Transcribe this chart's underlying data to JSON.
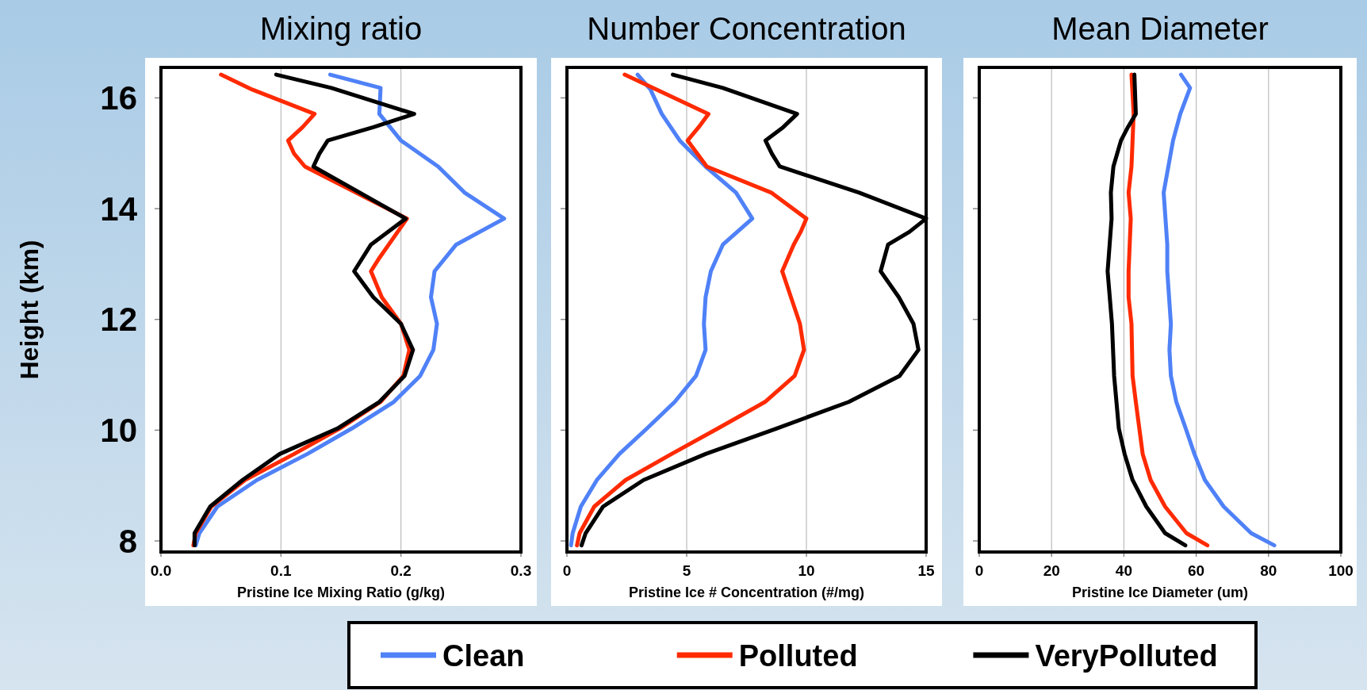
{
  "chart_data": [
    {
      "type": "line",
      "title": "Mixing ratio",
      "xlabel": "Pristine Ice Mixing Ratio (g/kg)",
      "ylabel": "Height (km)",
      "xlim": [
        0,
        0.3
      ],
      "xticks": [
        {
          "value": 0,
          "label": "0.0"
        },
        0.1,
        0.2,
        0.3
      ],
      "ylim": [
        7.8,
        16.55
      ],
      "yticks": [
        8,
        10,
        12,
        14,
        16
      ],
      "grid": "x",
      "legend": "bottom",
      "series": [
        {
          "name": "Clean",
          "color": "#4f81f7",
          "x": [
            0.141,
            0.183,
            0.182,
            0.2,
            0.231,
            0.253,
            0.286,
            0.246,
            0.228,
            0.225,
            0.23,
            0.227,
            0.216,
            0.194,
            0.159,
            0.122,
            0.08,
            0.047,
            0.032,
            0.029
          ],
          "values": [
            16.42,
            16.18,
            15.71,
            15.23,
            14.76,
            14.29,
            13.82,
            13.35,
            12.87,
            12.4,
            11.92,
            11.45,
            10.98,
            10.51,
            10.03,
            9.57,
            9.1,
            8.62,
            8.14,
            7.92
          ]
        },
        {
          "name": "Polluted",
          "color": "#ff2a00",
          "x": [
            0.05,
            0.076,
            0.128,
            0.118,
            0.106,
            0.111,
            0.12,
            0.205,
            0.182,
            0.175,
            0.184,
            0.2,
            0.207,
            0.202,
            0.183,
            0.149,
            0.111,
            0.07,
            0.042,
            0.029,
            0.027
          ],
          "values": [
            16.42,
            16.15,
            15.71,
            15.47,
            15.23,
            14.99,
            14.76,
            13.82,
            13.11,
            12.87,
            12.4,
            11.92,
            11.45,
            10.98,
            10.51,
            10.03,
            9.57,
            9.1,
            8.62,
            8.14,
            7.92
          ]
        },
        {
          "name": "VeryPolluted",
          "color": "#000000",
          "x": [
            0.096,
            0.142,
            0.211,
            0.177,
            0.139,
            0.132,
            0.127,
            0.204,
            0.175,
            0.161,
            0.177,
            0.2,
            0.21,
            0.203,
            0.182,
            0.147,
            0.099,
            0.068,
            0.041,
            0.028,
            0.028
          ],
          "values": [
            16.42,
            16.18,
            15.71,
            15.47,
            15.23,
            14.99,
            14.76,
            13.82,
            13.35,
            12.87,
            12.4,
            11.92,
            11.45,
            10.98,
            10.51,
            10.03,
            9.57,
            9.1,
            8.62,
            8.14,
            7.92
          ]
        }
      ]
    },
    {
      "type": "line",
      "title": "Number Concentration",
      "xlabel": "Pristine Ice # Concentration (#/mg)",
      "xlim": [
        0,
        15
      ],
      "xticks": [
        0,
        5,
        10,
        15
      ],
      "ylim": [
        7.8,
        16.55
      ],
      "yticks": [
        8,
        10,
        12,
        14,
        16
      ],
      "tick_labels": "x",
      "grid": "x",
      "series": [
        {
          "color": "#4f81f7",
          "x": [
            2.95,
            3.49,
            3.96,
            4.71,
            5.79,
            7.06,
            7.74,
            6.51,
            6.01,
            5.79,
            5.72,
            5.79,
            5.39,
            4.5,
            3.34,
            2.19,
            1.25,
            0.58,
            0.24,
            0.17
          ],
          "values": [
            16.42,
            16.15,
            15.71,
            15.23,
            14.76,
            14.29,
            13.82,
            13.35,
            12.87,
            12.4,
            11.92,
            11.45,
            10.98,
            10.51,
            10.03,
            9.57,
            9.1,
            8.62,
            8.14,
            7.92
          ]
        },
        {
          "color": "#ff2a00",
          "x": [
            2.41,
            5.91,
            5.5,
            5.04,
            5.84,
            8.53,
            10.0,
            9.76,
            9.47,
            8.99,
            9.73,
            9.9,
            9.51,
            8.27,
            6.3,
            4.37,
            2.45,
            1.14,
            0.53,
            0.42
          ],
          "values": [
            16.42,
            15.71,
            15.47,
            15.23,
            14.76,
            14.29,
            13.82,
            13.58,
            13.35,
            12.87,
            11.92,
            11.45,
            10.98,
            10.51,
            10.03,
            9.57,
            9.1,
            8.62,
            8.14,
            7.92
          ]
        },
        {
          "color": "#000000",
          "x": [
            4.42,
            6.51,
            9.61,
            9.03,
            8.29,
            8.56,
            8.89,
            12.2,
            15.0,
            14.3,
            13.41,
            13.1,
            13.86,
            14.47,
            14.68,
            13.89,
            11.77,
            8.75,
            5.79,
            3.2,
            1.51,
            0.78,
            0.61
          ],
          "values": [
            16.42,
            16.18,
            15.71,
            15.47,
            15.23,
            14.99,
            14.76,
            14.29,
            13.82,
            13.58,
            13.35,
            12.87,
            12.4,
            11.92,
            11.45,
            10.98,
            10.51,
            10.03,
            9.57,
            9.1,
            8.62,
            8.14,
            7.92
          ]
        }
      ]
    },
    {
      "type": "line",
      "title": "Mean Diameter",
      "xlabel": "Pristine Ice Diameter (um)",
      "xlim": [
        0,
        100
      ],
      "xticks": [
        0,
        20,
        40,
        60,
        80,
        100
      ],
      "ylim": [
        7.8,
        16.55
      ],
      "yticks": [
        8,
        10,
        12,
        14,
        16
      ],
      "tick_labels": "x",
      "grid": "x",
      "series": [
        {
          "color": "#4f81f7",
          "x": [
            55.8,
            58.3,
            55.6,
            53.6,
            51.0,
            52.0,
            52.0,
            53.0,
            52.6,
            53.0,
            54.5,
            57.1,
            59.5,
            62.4,
            67.6,
            75.2,
            81.6
          ],
          "values": [
            16.42,
            16.18,
            15.71,
            15.23,
            14.29,
            13.35,
            12.87,
            11.92,
            11.45,
            10.98,
            10.51,
            10.03,
            9.57,
            9.1,
            8.62,
            8.14,
            7.92
          ]
        },
        {
          "color": "#ff2a00",
          "x": [
            42.1,
            42.7,
            42.4,
            42.1,
            41.3,
            41.9,
            41.3,
            41.3,
            42.1,
            42.4,
            43.3,
            45.2,
            47.4,
            51.4,
            57.3,
            63.1
          ],
          "values": [
            16.42,
            15.71,
            15.23,
            14.76,
            14.29,
            13.82,
            12.87,
            12.4,
            11.92,
            10.98,
            10.51,
            9.57,
            9.1,
            8.62,
            8.14,
            7.92
          ]
        },
        {
          "color": "#000000",
          "x": [
            42.9,
            43.3,
            41.1,
            39.2,
            37.1,
            36.4,
            36.6,
            35.5,
            36.7,
            37.3,
            38.6,
            40.2,
            42.4,
            46.2,
            51.4,
            57.0
          ],
          "values": [
            16.42,
            15.71,
            15.47,
            15.23,
            14.76,
            14.29,
            13.82,
            12.87,
            11.92,
            10.98,
            10.03,
            9.57,
            9.1,
            8.62,
            8.14,
            7.92
          ]
        }
      ]
    }
  ]
}
